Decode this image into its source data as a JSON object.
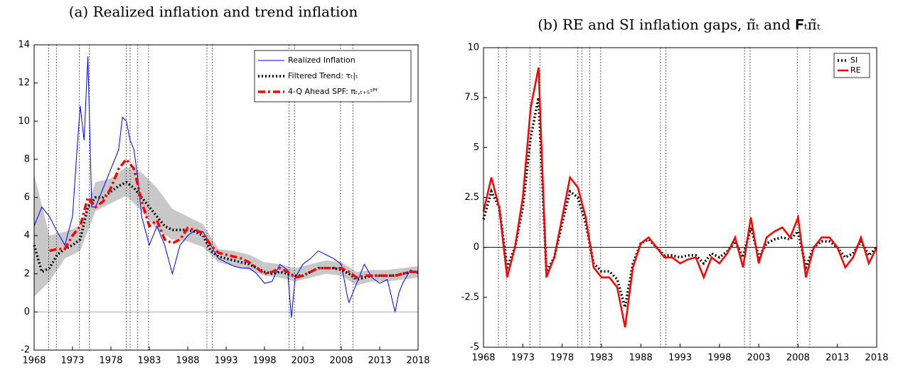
{
  "chart_data": [
    {
      "type": "line",
      "title": "(a) Realized inflation and trend inflation",
      "xlim": [
        1968,
        2018
      ],
      "xticks": [
        1968,
        1973,
        1978,
        1983,
        1988,
        1993,
        1998,
        2003,
        2008,
        2013,
        2018
      ],
      "ylim": [
        -2,
        14
      ],
      "yticks": [
        -2,
        0,
        2,
        4,
        6,
        8,
        10,
        12,
        14
      ],
      "hline": 0,
      "hline_color": "#aaaaaa",
      "legend": "upper right",
      "recessions": [
        [
          1969.9,
          1970.9
        ],
        [
          1973.9,
          1975.2
        ],
        [
          1980.0,
          1980.5
        ],
        [
          1981.5,
          1982.9
        ],
        [
          1990.5,
          1991.2
        ],
        [
          2001.2,
          2001.9
        ],
        [
          2007.9,
          2009.5
        ]
      ],
      "band": {
        "color": "#c8c8c8",
        "x": [
          1968,
          1970,
          1972,
          1974,
          1976,
          1978,
          1980,
          1982,
          1984,
          1986,
          1988,
          1990,
          1992,
          1994,
          1996,
          1998,
          2000,
          2002,
          2004,
          2006,
          2008,
          2010,
          2012,
          2014,
          2016,
          2018
        ],
        "lower": [
          0.8,
          1.6,
          2.8,
          3.2,
          5.3,
          5.7,
          6.1,
          5.3,
          4.3,
          3.8,
          3.7,
          3.4,
          2.6,
          2.4,
          2.2,
          1.9,
          1.8,
          1.6,
          1.8,
          2.0,
          1.9,
          1.4,
          1.6,
          1.6,
          1.7,
          1.8
        ],
        "upper": [
          7.2,
          4.0,
          4.2,
          4.5,
          6.8,
          7.0,
          7.6,
          7.3,
          6.5,
          5.4,
          5.0,
          4.6,
          3.3,
          3.2,
          3.0,
          2.6,
          2.5,
          2.3,
          2.5,
          2.7,
          2.6,
          2.1,
          2.2,
          2.2,
          2.3,
          2.4
        ]
      },
      "series": [
        {
          "name": "Realized Inflation",
          "color": "#0000ff",
          "style": "solid",
          "width": 1,
          "x": [
            1968,
            1969,
            1970,
            1971,
            1972,
            1973,
            1973.5,
            1974,
            1974.5,
            1975,
            1975.5,
            1976,
            1977,
            1978,
            1979,
            1979.5,
            1980,
            1980.5,
            1981,
            1981.5,
            1982,
            1983,
            1984,
            1985,
            1986,
            1987,
            1988,
            1989,
            1990,
            1991,
            1992,
            1993,
            1994,
            1995,
            1996,
            1997,
            1998,
            1999,
            2000,
            2001,
            2001.5,
            2002,
            2003,
            2004,
            2005,
            2006,
            2007,
            2008,
            2008.8,
            2009,
            2010,
            2011,
            2012,
            2013,
            2014,
            2015,
            2015.5,
            2016,
            2017,
            2018
          ],
          "values": [
            4.5,
            5.5,
            5,
            4.2,
            3.5,
            5,
            8,
            10.8,
            9,
            13.4,
            5.5,
            5.5,
            6.5,
            7.5,
            8.5,
            10.2,
            10,
            9,
            8.5,
            7,
            5,
            3.5,
            4.5,
            3.5,
            2,
            3.5,
            4,
            4.3,
            4.2,
            3.5,
            2.8,
            2.6,
            2.4,
            2.3,
            2.3,
            2,
            1.5,
            1.6,
            2.5,
            2.2,
            -0.3,
            1.8,
            2.5,
            2.8,
            3.2,
            3,
            2.8,
            2.5,
            0.8,
            0.5,
            1.5,
            2.5,
            1.8,
            1.5,
            1.7,
            0,
            1,
            1.5,
            2.2,
            2.0
          ]
        },
        {
          "name": "Filtered Trend: τₜ|ₜ",
          "color": "#000000",
          "style": "dotted",
          "width": 3.5,
          "x": [
            1968,
            1969,
            1970,
            1971,
            1972,
            1973,
            1974,
            1975,
            1976,
            1977,
            1978,
            1979,
            1980,
            1981,
            1982,
            1983,
            1984,
            1985,
            1986,
            1987,
            1988,
            1989,
            1990,
            1991,
            1992,
            1993,
            1994,
            1995,
            1996,
            1997,
            1998,
            1999,
            2000,
            2001,
            2002,
            2003,
            2004,
            2005,
            2006,
            2007,
            2008,
            2009,
            2010,
            2011,
            2012,
            2013,
            2014,
            2015,
            2016,
            2017,
            2018
          ],
          "values": [
            3.5,
            2.1,
            2.3,
            3.0,
            3.3,
            3.5,
            3.8,
            5.5,
            6.0,
            6.0,
            6.3,
            6.6,
            6.8,
            6.5,
            6.0,
            5.5,
            5.0,
            4.5,
            4.3,
            4.3,
            4.3,
            4.2,
            4.0,
            3.2,
            2.9,
            2.8,
            2.7,
            2.6,
            2.5,
            2.3,
            2.1,
            2.0,
            2.1,
            2.0,
            1.9,
            1.9,
            2.1,
            2.3,
            2.3,
            2.3,
            2.2,
            2.0,
            1.7,
            1.8,
            1.9,
            1.9,
            1.9,
            1.9,
            2.0,
            2.1,
            2.1
          ]
        },
        {
          "name": "4-Q Ahead SPF: πₜ,ₜ₊₅ˢᴾᶠ",
          "color": "#ff0000",
          "style": "dashdot",
          "width": 3.5,
          "x": [
            1970,
            1971,
            1972,
            1973,
            1974,
            1975,
            1976,
            1977,
            1978,
            1979,
            1980,
            1981,
            1982,
            1983,
            1984,
            1985,
            1986,
            1987,
            1988,
            1989,
            1990,
            1991,
            1992,
            1993,
            1994,
            1995,
            1996,
            1997,
            1998,
            1999,
            2000,
            2001,
            2002,
            2003,
            2004,
            2005,
            2006,
            2007,
            2008,
            2009,
            2010,
            2011,
            2012,
            2013,
            2014,
            2015,
            2016,
            2017,
            2018
          ],
          "values": [
            3.2,
            3.3,
            3.3,
            4.0,
            4.5,
            6.0,
            5.5,
            5.8,
            6.5,
            7.5,
            8.0,
            7.5,
            5.8,
            4.5,
            4.8,
            3.8,
            3.6,
            3.8,
            4.4,
            4.3,
            4.1,
            3.5,
            3.1,
            3.0,
            2.9,
            2.8,
            2.6,
            2.3,
            2.0,
            2.1,
            2.3,
            2.1,
            1.8,
            1.9,
            2.1,
            2.3,
            2.3,
            2.3,
            2.3,
            2.1,
            1.8,
            1.9,
            1.9,
            1.9,
            1.9,
            1.9,
            2.0,
            2.1,
            2.1
          ]
        }
      ]
    },
    {
      "type": "line",
      "title": "(b) RE and SI inflation gaps, π̃ₜ and 𝐅ₜπ̃ₜ",
      "xlim": [
        1968,
        2018
      ],
      "xticks": [
        1968,
        1973,
        1978,
        1983,
        1988,
        1993,
        1998,
        2003,
        2008,
        2013,
        2018
      ],
      "ylim": [
        -5,
        10
      ],
      "yticks": [
        -5,
        -2.5,
        0,
        2.5,
        5,
        7.5,
        10
      ],
      "hline": 0,
      "hline_color": "#000000",
      "legend": "upper right",
      "recessions": [
        [
          1969.9,
          1970.9
        ],
        [
          1973.9,
          1975.2
        ],
        [
          1980.0,
          1980.5
        ],
        [
          1981.5,
          1982.9
        ],
        [
          1990.5,
          1991.2
        ],
        [
          2001.2,
          2001.9
        ],
        [
          2007.9,
          2009.5
        ]
      ],
      "series": [
        {
          "name": "SI",
          "color": "#000000",
          "style": "dotted",
          "width": 3.5,
          "x": [
            1968,
            1969,
            1970,
            1971,
            1972,
            1973,
            1974,
            1975,
            1976,
            1977,
            1978,
            1979,
            1980,
            1981,
            1982,
            1983,
            1984,
            1985,
            1986,
            1987,
            1988,
            1989,
            1990,
            1991,
            1992,
            1993,
            1994,
            1995,
            1996,
            1997,
            1998,
            1999,
            2000,
            2001,
            2002,
            2003,
            2004,
            2005,
            2006,
            2007,
            2008,
            2009,
            2010,
            2011,
            2012,
            2013,
            2014,
            2015,
            2016,
            2017,
            2018
          ],
          "values": [
            1.4,
            2.8,
            2.0,
            -1.0,
            0,
            2.0,
            5.5,
            7.5,
            -1.2,
            -0.5,
            1.2,
            2.8,
            2.5,
            1.2,
            -0.8,
            -1.2,
            -1.2,
            -1.6,
            -3.0,
            -0.8,
            0.2,
            0.4,
            0,
            -0.4,
            -0.4,
            -0.5,
            -0.4,
            -0.4,
            -0.8,
            -0.3,
            -0.5,
            -0.2,
            0.3,
            -0.5,
            1.0,
            -0.5,
            0.2,
            0.4,
            0.5,
            0.4,
            0.8,
            -1.0,
            0,
            0.3,
            0.3,
            0,
            -0.5,
            -0.3,
            0.3,
            -0.4,
            0
          ]
        },
        {
          "name": "RE",
          "color": "#ff0000",
          "style": "solid",
          "width": 2.5,
          "x": [
            1968,
            1969,
            1970,
            1971,
            1972,
            1973,
            1974,
            1975,
            1976,
            1977,
            1978,
            1979,
            1980,
            1981,
            1982,
            1983,
            1984,
            1985,
            1986,
            1987,
            1988,
            1989,
            1990,
            1991,
            1992,
            1993,
            1994,
            1995,
            1996,
            1997,
            1998,
            1999,
            2000,
            2001,
            2002,
            2003,
            2004,
            2005,
            2006,
            2007,
            2008,
            2009,
            2010,
            2011,
            2012,
            2013,
            2014,
            2015,
            2016,
            2017,
            2018
          ],
          "values": [
            1.8,
            3.5,
            2.0,
            -1.5,
            0,
            2.5,
            7.0,
            9.0,
            -1.5,
            -0.5,
            1.5,
            3.5,
            3.0,
            1.5,
            -1.0,
            -1.5,
            -1.5,
            -2.0,
            -4.0,
            -1.0,
            0.2,
            0.5,
            0,
            -0.5,
            -0.5,
            -0.8,
            -0.6,
            -0.5,
            -1.5,
            -0.5,
            -0.8,
            -0.3,
            0.5,
            -1.0,
            1.5,
            -0.8,
            0.5,
            0.8,
            1.0,
            0.5,
            1.5,
            -1.5,
            0,
            0.5,
            0.5,
            0,
            -1.0,
            -0.5,
            0.5,
            -0.8,
            0
          ]
        }
      ]
    }
  ]
}
